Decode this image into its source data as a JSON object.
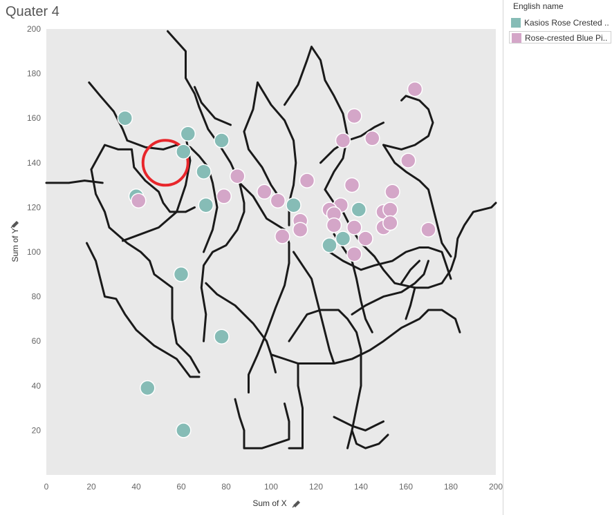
{
  "sheet": {
    "title": "Quater 4"
  },
  "legend": {
    "title": "English name",
    "items": [
      {
        "label": "Kasios Rose Crested ..",
        "color": "#86bcb6"
      },
      {
        "label": "Rose-crested Blue Pi..",
        "color": "#d4a6c8"
      }
    ]
  },
  "chart_data": {
    "type": "scatter",
    "title": "Quater 4",
    "xlabel": "Sum of X",
    "ylabel": "Sum of Y",
    "xlim": [
      0,
      200
    ],
    "ylim": [
      0,
      200
    ],
    "x_ticks": [
      "0",
      "20",
      "40",
      "60",
      "80",
      "100",
      "120",
      "140",
      "160",
      "180",
      "200"
    ],
    "y_ticks": [
      "20",
      "40",
      "60",
      "80",
      "100",
      "120",
      "140",
      "160",
      "180",
      "200"
    ],
    "background_map": "trail map with highlighted red circle",
    "highlight_circle": {
      "cx": 53,
      "cy": 140,
      "r": 10,
      "color": "#e8262b"
    },
    "series": [
      {
        "name": "Kasios Rose Crested ..",
        "color": "#86bcb6",
        "points": [
          [
            35,
            160
          ],
          [
            63,
            153
          ],
          [
            61,
            145
          ],
          [
            78,
            150
          ],
          [
            70,
            136
          ],
          [
            40,
            125
          ],
          [
            71,
            121
          ],
          [
            110,
            121
          ],
          [
            139,
            119
          ],
          [
            126,
            103
          ],
          [
            132,
            106
          ],
          [
            60,
            90
          ],
          [
            78,
            62
          ],
          [
            45,
            39
          ],
          [
            61,
            20
          ]
        ]
      },
      {
        "name": "Rose-crested Blue Pi..",
        "color": "#d4a6c8",
        "points": [
          [
            164,
            173
          ],
          [
            137,
            161
          ],
          [
            132,
            150
          ],
          [
            145,
            151
          ],
          [
            161,
            141
          ],
          [
            85,
            134
          ],
          [
            116,
            132
          ],
          [
            136,
            130
          ],
          [
            154,
            127
          ],
          [
            97,
            127
          ],
          [
            103,
            123
          ],
          [
            79,
            125
          ],
          [
            41,
            123
          ],
          [
            131,
            121
          ],
          [
            126,
            119
          ],
          [
            128,
            117
          ],
          [
            150,
            118
          ],
          [
            153,
            119
          ],
          [
            113,
            114
          ],
          [
            128,
            112
          ],
          [
            137,
            111
          ],
          [
            150,
            111
          ],
          [
            153,
            113
          ],
          [
            170,
            110
          ],
          [
            113,
            110
          ],
          [
            105,
            107
          ],
          [
            142,
            106
          ],
          [
            137,
            99
          ]
        ]
      }
    ]
  }
}
